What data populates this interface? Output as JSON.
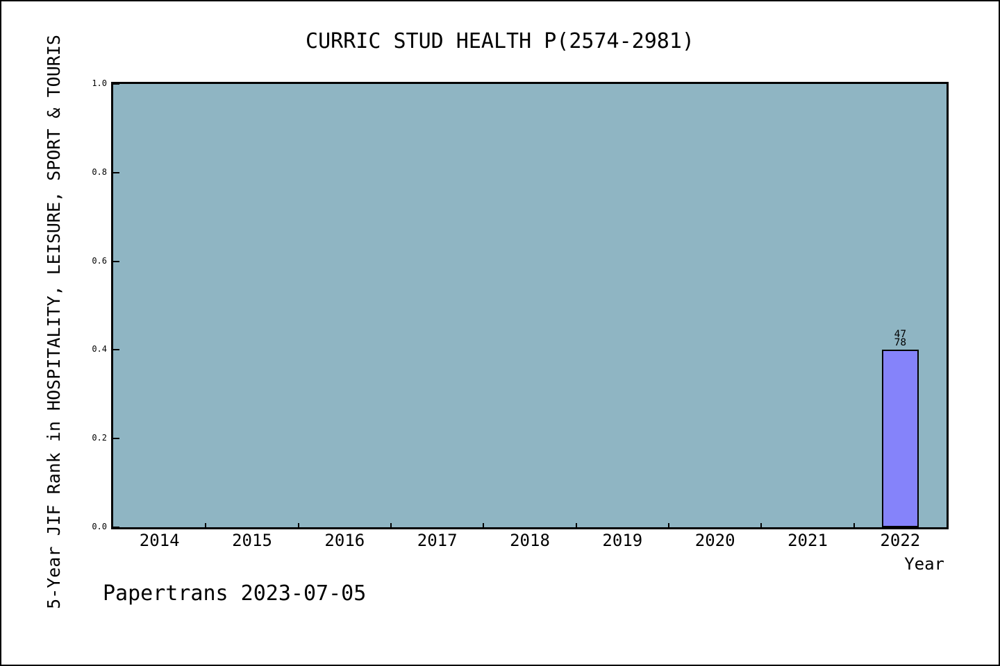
{
  "chart_data": {
    "type": "bar",
    "title": "CURRIC STUD HEALTH P(2574-2981)",
    "xlabel": "Year",
    "ylabel": "5-Year JIF Rank in HOSPITALITY, LEISURE, SPORT & TOURIS",
    "categories": [
      "2014",
      "2015",
      "2016",
      "2017",
      "2018",
      "2019",
      "2020",
      "2021",
      "2022"
    ],
    "values": [
      null,
      null,
      null,
      null,
      null,
      null,
      null,
      null,
      0.4
    ],
    "annotations": [
      {
        "category": "2022",
        "lines": [
          "47",
          "78"
        ]
      }
    ],
    "ylim": [
      0,
      1
    ],
    "yticks": [
      "0.0",
      "0.2",
      "0.4",
      "0.6",
      "0.8",
      "1.0"
    ],
    "grid": false,
    "legend": null,
    "tick_direction": "in",
    "x_tick_positions": "category-boundaries",
    "colors": {
      "plot_bg": "#8FB5C3",
      "bar_fill": "#8583FA",
      "bar_edge": "#000000",
      "axis": "#000000",
      "text": "#000000",
      "figure_bg": "#FFFFFF"
    },
    "watermark": "Papertrans 2023-07-05"
  }
}
